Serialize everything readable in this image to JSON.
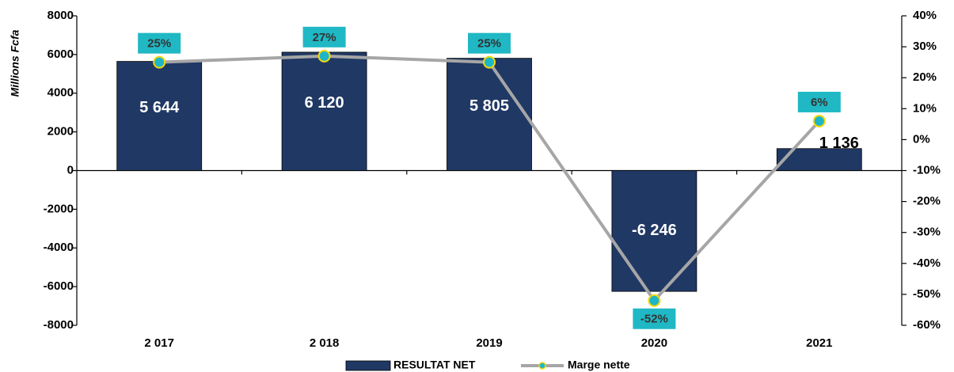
{
  "chart_data": {
    "type": "bar-line",
    "y_label": "Millions Fcfa",
    "categories": [
      "2 017",
      "2 018",
      "2019",
      "2020",
      "2021"
    ],
    "series": [
      {
        "name": "RESULTAT NET",
        "type": "bar",
        "color": "#203864",
        "values": [
          5644,
          6120,
          5805,
          -6246,
          1136
        ],
        "value_labels": [
          "5 644",
          "6 120",
          "5 805",
          "-6 246",
          "1 136"
        ]
      },
      {
        "name": "Marge nette",
        "type": "line",
        "axis": "y2",
        "color": "#a6a6a6",
        "marker_color": "#1fb5c8",
        "label_color": "#1fb8c4",
        "values": [
          25,
          27,
          25,
          -52,
          6
        ],
        "value_labels": [
          "25%",
          "27%",
          "25%",
          "-52%",
          "6%"
        ]
      }
    ],
    "ylim": [
      -8000,
      8000
    ],
    "yticks": [
      -8000,
      -6000,
      -4000,
      -2000,
      0,
      2000,
      4000,
      6000,
      8000
    ],
    "y2lim": [
      -60,
      40
    ],
    "y2ticks": [
      {
        "value": -60,
        "label": "-60%"
      },
      {
        "value": -50,
        "label": "-50%"
      },
      {
        "value": -40,
        "label": "-40%"
      },
      {
        "value": -30,
        "label": "-30%"
      },
      {
        "value": -20,
        "label": "-20%"
      },
      {
        "value": -10,
        "label": "-10%"
      },
      {
        "value": 0,
        "label": "0%"
      },
      {
        "value": 10,
        "label": "10%"
      },
      {
        "value": 20,
        "label": "20%"
      },
      {
        "value": 30,
        "label": "30%"
      },
      {
        "value": 40,
        "label": "40%"
      }
    ],
    "legend": "bottom"
  }
}
